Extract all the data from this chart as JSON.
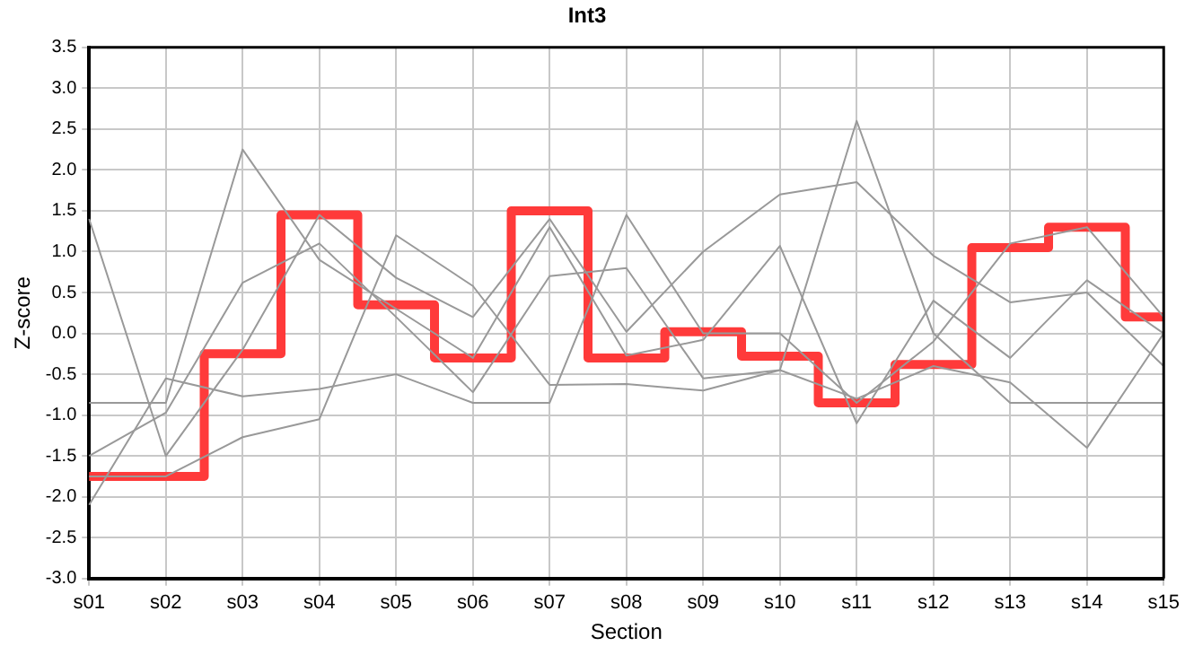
{
  "chart_data": {
    "type": "line",
    "title": "Int3",
    "xlabel": "Section",
    "ylabel": "Z-score",
    "categories": [
      "s01",
      "s02",
      "s03",
      "s04",
      "s05",
      "s06",
      "s07",
      "s08",
      "s09",
      "s10",
      "s11",
      "s12",
      "s13",
      "s14",
      "s15"
    ],
    "series": [
      {
        "color": "#999999",
        "values": [
          1.4,
          -1.5,
          -0.2,
          1.45,
          0.68,
          0.2,
          1.4,
          0.02,
          1.0,
          1.7,
          1.85,
          0.95,
          0.38,
          0.5,
          -0.4
        ]
      },
      {
        "color": "#999999",
        "values": [
          -0.85,
          -0.85,
          2.25,
          0.9,
          0.3,
          -0.3,
          1.3,
          -0.27,
          -0.08,
          1.07,
          -1.1,
          0.4,
          -0.3,
          0.65,
          0.0
        ]
      },
      {
        "color": "#999999",
        "values": [
          -1.5,
          -0.97,
          0.62,
          1.1,
          0.2,
          -0.72,
          0.7,
          0.8,
          -0.55,
          -0.45,
          2.6,
          0.0,
          -0.85,
          -0.85,
          -0.85
        ]
      },
      {
        "color": "#999999",
        "values": [
          -2.1,
          -0.55,
          -0.77,
          -0.68,
          -0.5,
          -0.85,
          -0.85,
          1.45,
          0.0,
          0.0,
          -0.85,
          -0.1,
          1.1,
          1.3,
          0.2
        ]
      },
      {
        "color": "#999999",
        "values": [
          -1.75,
          -1.75,
          -1.27,
          -1.05,
          1.2,
          0.58,
          -0.63,
          -0.62,
          -0.7,
          -0.45,
          -0.8,
          -0.4,
          -0.6,
          -1.4,
          0.0
        ]
      },
      {
        "type": "step",
        "color": "#ff3a3a",
        "values": [
          -1.75,
          -1.75,
          -0.25,
          1.45,
          0.35,
          -0.3,
          1.5,
          -0.3,
          0.02,
          -0.28,
          -0.85,
          -0.38,
          1.05,
          1.3,
          0.2
        ]
      }
    ],
    "ylim": [
      -3.0,
      3.5
    ],
    "yticks": [
      {
        "value": -3,
        "label": "-3.0"
      },
      {
        "value": -2.5,
        "label": "-2.5"
      },
      {
        "value": -2,
        "label": "-2.0"
      },
      {
        "value": -1.5,
        "label": "-1.5"
      },
      {
        "value": -1,
        "label": "-1.0"
      },
      {
        "value": -0.5,
        "label": "-0.5"
      },
      {
        "value": 0,
        "label": "0.0"
      },
      {
        "value": 0.5,
        "label": "0.5"
      },
      {
        "value": 1,
        "label": "1.0"
      },
      {
        "value": 1.5,
        "label": "1.5"
      },
      {
        "value": 2,
        "label": "2.0"
      },
      {
        "value": 2.5,
        "label": "2.5"
      },
      {
        "value": 3,
        "label": "3.0"
      },
      {
        "value": 3.5,
        "label": "3.5"
      }
    ],
    "grid": true,
    "legend": false,
    "marker": "none"
  }
}
